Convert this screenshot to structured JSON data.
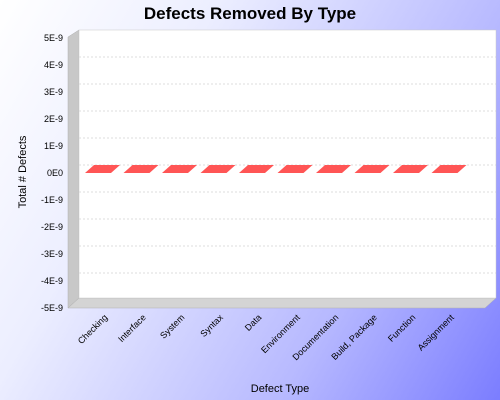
{
  "chart_data": {
    "type": "bar",
    "title": "Defects Removed By Type",
    "xlabel": "Defect Type",
    "ylabel": "Total # Defects",
    "categories": [
      "Checking",
      "Interface",
      "System",
      "Syntax",
      "Data",
      "Environment",
      "Documentation",
      "Build, Package",
      "Function",
      "Assignment"
    ],
    "values": [
      0,
      0,
      0,
      0,
      0,
      0,
      0,
      0,
      0,
      0
    ],
    "y_ticks": [
      "5E-9",
      "4E-9",
      "3E-9",
      "2E-9",
      "1E-9",
      "0E0",
      "-1E-9",
      "-2E-9",
      "-3E-9",
      "-4E-9",
      "-5E-9"
    ],
    "ylim": [
      -5e-09,
      5e-09
    ],
    "grid": true,
    "bar_color": "#ff5555"
  }
}
